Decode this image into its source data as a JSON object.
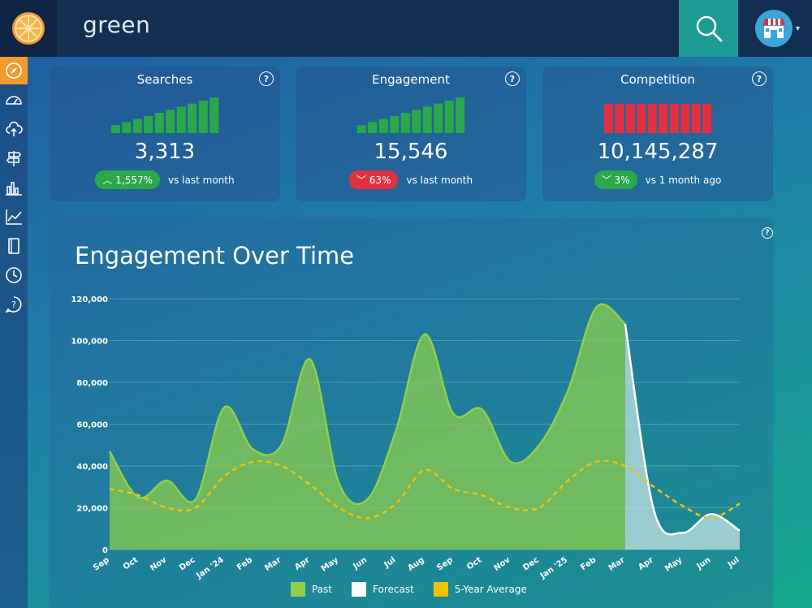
{
  "header": {
    "logo_icon": "orange-slice-icon",
    "query": "green",
    "search_icon": "search-icon",
    "avatar_icon": "store-icon",
    "caret_icon": "caret-down-icon"
  },
  "sidebar": {
    "items": [
      {
        "icon": "compass-icon",
        "active": true
      },
      {
        "icon": "speedometer-icon",
        "active": false
      },
      {
        "icon": "cloud-upload-icon",
        "active": false
      },
      {
        "icon": "signpost-icon",
        "active": false
      },
      {
        "icon": "bar-chart-icon",
        "active": false
      },
      {
        "icon": "line-chart-icon",
        "active": false
      },
      {
        "icon": "notebook-icon",
        "active": false
      },
      {
        "icon": "clock-icon",
        "active": false
      },
      {
        "icon": "help-icon",
        "active": false
      }
    ]
  },
  "cards": [
    {
      "title": "Searches",
      "value": "3,313",
      "delta": "1,557%",
      "delta_direction": "up",
      "compare": "vs last month",
      "bar_color": "#2aa84a",
      "bars": [
        1,
        2,
        3,
        4,
        5,
        6,
        7,
        8,
        9,
        10
      ]
    },
    {
      "title": "Engagement",
      "value": "15,546",
      "delta": "63%",
      "delta_direction": "down",
      "compare": "vs last month",
      "bar_color": "#2aa84a",
      "bars": [
        1,
        2,
        3,
        4,
        5,
        6,
        7,
        8,
        9,
        10
      ]
    },
    {
      "title": "Competition",
      "value": "10,145,287",
      "delta": "3%",
      "delta_direction": "down",
      "compare": "vs 1 month ago",
      "bar_color": "#e23142",
      "bars": [
        10,
        10,
        10,
        10,
        10,
        10,
        10,
        10,
        10,
        10
      ]
    }
  ],
  "chart_card": {
    "title": "Engagement Over Time"
  },
  "chart_data": {
    "type": "area",
    "title": "Engagement Over Time",
    "x": [
      "Sep",
      "Oct",
      "Nov",
      "Dec",
      "Jan '24",
      "Feb",
      "Mar",
      "Apr",
      "May",
      "Jun",
      "Jul",
      "Aug",
      "Sep",
      "Oct",
      "Nov",
      "Dec",
      "Jan '25",
      "Feb",
      "Mar",
      "Apr",
      "May",
      "Jun",
      "Jul"
    ],
    "ylim": [
      0,
      120000
    ],
    "yticks": [
      0,
      20000,
      40000,
      60000,
      80000,
      100000,
      120000
    ],
    "ytick_labels": [
      "0",
      "20,000",
      "40,000",
      "60,000",
      "80,000",
      "100,000",
      "120,000"
    ],
    "grid": true,
    "legend_position": "bottom",
    "series": [
      {
        "name": "Past",
        "color": "#8fcf4a",
        "values": [
          47000,
          25000,
          33000,
          24000,
          68000,
          48000,
          50000,
          91000,
          32000,
          24000,
          57000,
          103000,
          65000,
          67000,
          42000,
          50000,
          76000,
          116000,
          108000,
          null,
          null,
          null,
          null
        ]
      },
      {
        "name": "Forecast",
        "color": "#ffffff",
        "values": [
          null,
          null,
          null,
          null,
          null,
          null,
          null,
          null,
          null,
          null,
          null,
          null,
          null,
          null,
          null,
          null,
          null,
          null,
          108000,
          19000,
          8000,
          17000,
          9000
        ]
      },
      {
        "name": "5-Year Average",
        "color": "#f2c200",
        "values": [
          29000,
          26000,
          20000,
          20000,
          35000,
          42000,
          40000,
          31000,
          20000,
          15000,
          22000,
          38000,
          29000,
          26000,
          20000,
          20000,
          33000,
          42000,
          40000,
          30000,
          21000,
          15000,
          22000
        ]
      }
    ]
  }
}
